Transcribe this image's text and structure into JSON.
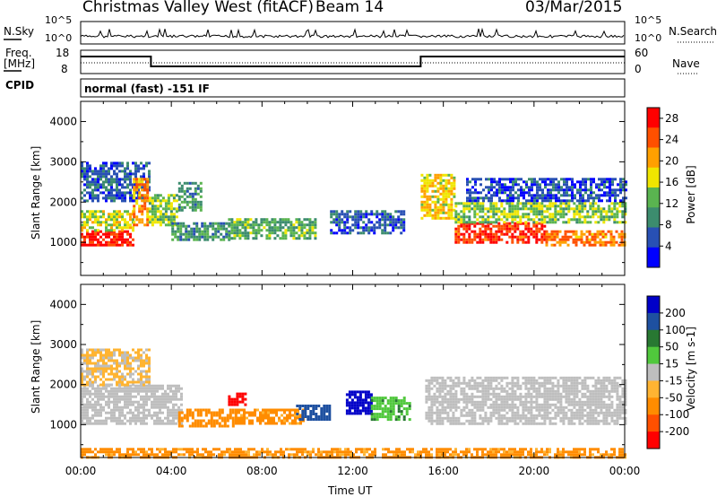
{
  "header": {
    "radar_title": "Christmas Valley West (fitACF)",
    "beam_label": "Beam 14",
    "date": "03/Mar/2015"
  },
  "strip_labels": {
    "nsky": "N.Sky",
    "nsky_ticks": [
      "10^5",
      "10^0"
    ],
    "nsearch": "N.Search",
    "nsearch_ticks": [
      "10^5",
      "10^0"
    ],
    "freq": "Freq.",
    "freq_unit": "[MHz]",
    "freq_ticks": [
      "18",
      "8"
    ],
    "nave": "Nave",
    "nave_ticks": [
      "60",
      "0"
    ],
    "cpid": "CPID",
    "cpid_value": "normal (fast) -151 IF"
  },
  "chart_data": [
    {
      "type": "heatmap",
      "panel": "power",
      "ylabel": "Slant Range [km]",
      "yticks": [
        "1000",
        "2000",
        "3000",
        "4000"
      ],
      "ylim": [
        180,
        4500
      ],
      "colorbar": {
        "label": "Power [dB]",
        "ticks": [
          "4",
          "8",
          "12",
          "16",
          "20",
          "24",
          "28"
        ],
        "range": [
          0,
          30
        ],
        "colors": [
          "#0000ff",
          "#2850b4",
          "#3c8c6e",
          "#5ab450",
          "#f0e600",
          "#ffa000",
          "#ff5000",
          "#ff0000"
        ]
      },
      "bands": [
        {
          "t0": 0.0,
          "t1": 2.3,
          "r0": 950,
          "r1": 1300,
          "level": 28
        },
        {
          "t0": 0.0,
          "t1": 2.3,
          "r0": 1300,
          "r1": 1800,
          "level": 16
        },
        {
          "t0": 0.0,
          "t1": 3.0,
          "r0": 2000,
          "r1": 3000,
          "level": 6
        },
        {
          "t0": 2.3,
          "t1": 3.0,
          "r0": 1400,
          "r1": 2600,
          "level": 22
        },
        {
          "t0": 3.0,
          "t1": 4.3,
          "r0": 1400,
          "r1": 2200,
          "level": 14
        },
        {
          "t0": 4.3,
          "t1": 5.3,
          "r0": 1800,
          "r1": 2500,
          "level": 10
        },
        {
          "t0": 4.0,
          "t1": 6.5,
          "r0": 1050,
          "r1": 1500,
          "level": 10
        },
        {
          "t0": 6.5,
          "t1": 10.3,
          "r0": 1100,
          "r1": 1600,
          "level": 12
        },
        {
          "t0": 11.0,
          "t1": 14.3,
          "r0": 1200,
          "r1": 1800,
          "level": 6
        },
        {
          "t0": 15.0,
          "t1": 16.5,
          "r0": 1600,
          "r1": 2700,
          "level": 18
        },
        {
          "t0": 16.5,
          "t1": 20.5,
          "r0": 1000,
          "r1": 1500,
          "level": 26
        },
        {
          "t0": 16.5,
          "t1": 24.0,
          "r0": 1500,
          "r1": 2000,
          "level": 14
        },
        {
          "t0": 20.5,
          "t1": 24.0,
          "r0": 950,
          "r1": 1300,
          "level": 22
        },
        {
          "t0": 17.0,
          "t1": 24.0,
          "r0": 2000,
          "r1": 2600,
          "level": 5
        }
      ]
    },
    {
      "type": "heatmap",
      "panel": "velocity",
      "ylabel": "Slant Range [km]",
      "yticks": [
        "1000",
        "2000",
        "3000",
        "4000"
      ],
      "ylim": [
        180,
        4500
      ],
      "colorbar": {
        "label": "Velocity [m s-1]",
        "ticks": [
          "200",
          "100",
          "50",
          "15",
          "-15",
          "-50",
          "-100",
          "-200"
        ],
        "range": [
          -250,
          250
        ],
        "colors": [
          "#0000c8",
          "#1e50a0",
          "#287832",
          "#50c83c",
          "#bebebe",
          "#ffb432",
          "#ff8c00",
          "#ff5000",
          "#ff0000"
        ]
      },
      "bands": [
        {
          "t0": 0.0,
          "t1": 4.5,
          "r0": 1000,
          "r1": 2000,
          "v": 0
        },
        {
          "t0": 0.0,
          "t1": 3.0,
          "r0": 2000,
          "r1": 2900,
          "v": -20
        },
        {
          "t0": 4.3,
          "t1": 6.8,
          "r0": 950,
          "r1": 1400,
          "v": -80
        },
        {
          "t0": 6.8,
          "t1": 9.8,
          "r0": 1000,
          "r1": 1400,
          "v": -60
        },
        {
          "t0": 9.5,
          "t1": 11.0,
          "r0": 1100,
          "r1": 1500,
          "v": 120
        },
        {
          "t0": 11.7,
          "t1": 12.8,
          "r0": 1300,
          "r1": 1850,
          "v": 230
        },
        {
          "t0": 12.8,
          "t1": 14.5,
          "r0": 1100,
          "r1": 1700,
          "v": 40
        },
        {
          "t0": 15.2,
          "t1": 24.0,
          "r0": 1000,
          "r1": 2200,
          "v": 0
        },
        {
          "t0": 6.5,
          "t1": 7.3,
          "r0": 1500,
          "r1": 1800,
          "v": -220
        },
        {
          "t0": 0.0,
          "t1": 24.0,
          "r0": 180,
          "r1": 420,
          "v": -60
        }
      ]
    }
  ],
  "xaxis": {
    "label": "Time UT",
    "ticks": [
      "00:00",
      "04:00",
      "08:00",
      "12:00",
      "16:00",
      "20:00",
      "00:00"
    ],
    "range": [
      0,
      24
    ]
  }
}
